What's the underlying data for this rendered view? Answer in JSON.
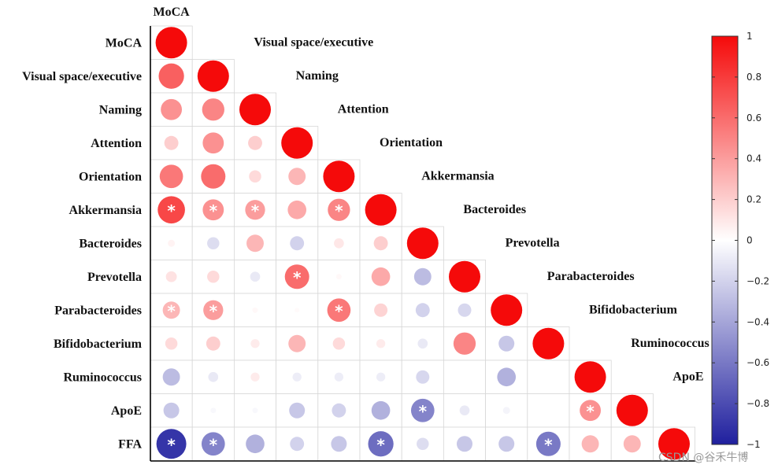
{
  "chart_data": {
    "type": "heatmap",
    "subtype": "correlation-circle-lower-triangle",
    "variables": [
      "MoCA",
      "Visual space/executive",
      "Naming",
      "Attention",
      "Orientation",
      "Akkermansia",
      "Bacteroides",
      "Prevotella",
      "Parabacteroides",
      "Bifidobacterium",
      "Ruminococcus",
      "ApoE",
      "FFA"
    ],
    "matrix": [
      [
        1
      ],
      [
        0.65,
        1
      ],
      [
        0.45,
        0.5,
        1
      ],
      [
        0.2,
        0.45,
        0.2,
        1
      ],
      [
        0.55,
        0.6,
        0.15,
        0.3,
        1
      ],
      [
        0.75,
        0.45,
        0.4,
        0.35,
        0.5,
        1
      ],
      [
        0.05,
        -0.15,
        0.3,
        -0.2,
        0.1,
        0.2,
        1
      ],
      [
        0.12,
        0.15,
        -0.1,
        0.6,
        0.03,
        0.35,
        -0.3,
        1
      ],
      [
        0.3,
        0.4,
        0.03,
        0.02,
        0.55,
        0.18,
        -0.2,
        -0.18,
        1
      ],
      [
        0.15,
        0.2,
        0.08,
        0.3,
        0.15,
        0.08,
        -0.1,
        0.5,
        -0.25,
        1
      ],
      [
        -0.3,
        -0.1,
        0.08,
        -0.08,
        -0.08,
        -0.08,
        -0.18,
        0.0,
        -0.35,
        0.0,
        1
      ],
      [
        -0.25,
        -0.03,
        -0.03,
        -0.25,
        -0.2,
        -0.35,
        -0.55,
        -0.1,
        -0.05,
        0.0,
        0.45,
        1
      ],
      [
        -0.9,
        -0.55,
        -0.35,
        -0.2,
        -0.25,
        -0.65,
        -0.15,
        -0.25,
        -0.25,
        -0.6,
        0.3,
        0.3,
        1
      ]
    ],
    "significant": [
      [
        5,
        0
      ],
      [
        5,
        1
      ],
      [
        5,
        2
      ],
      [
        5,
        4
      ],
      [
        7,
        3
      ],
      [
        8,
        0
      ],
      [
        8,
        1
      ],
      [
        8,
        4
      ],
      [
        11,
        6
      ],
      [
        11,
        10
      ],
      [
        12,
        0
      ],
      [
        12,
        1
      ],
      [
        12,
        5
      ],
      [
        12,
        9
      ]
    ],
    "significance_marker": "*",
    "colorbar": {
      "range": [
        -1,
        1
      ],
      "ticks": [
        1,
        0.8,
        0.6,
        0.4,
        0.2,
        0,
        -0.2,
        -0.4,
        -0.6,
        -0.8,
        -1
      ],
      "tick_labels": [
        "1",
        "0.8",
        "0.6",
        "0.4",
        "0.2",
        "0",
        "−0.2",
        "−0.4",
        "−0.6",
        "−0.8",
        "−1"
      ],
      "colors": {
        "negative": "#1f1f9e",
        "neutral": "#ffffff",
        "positive": "#f50a0a"
      }
    }
  },
  "watermark": "CSDN @谷禾牛博"
}
